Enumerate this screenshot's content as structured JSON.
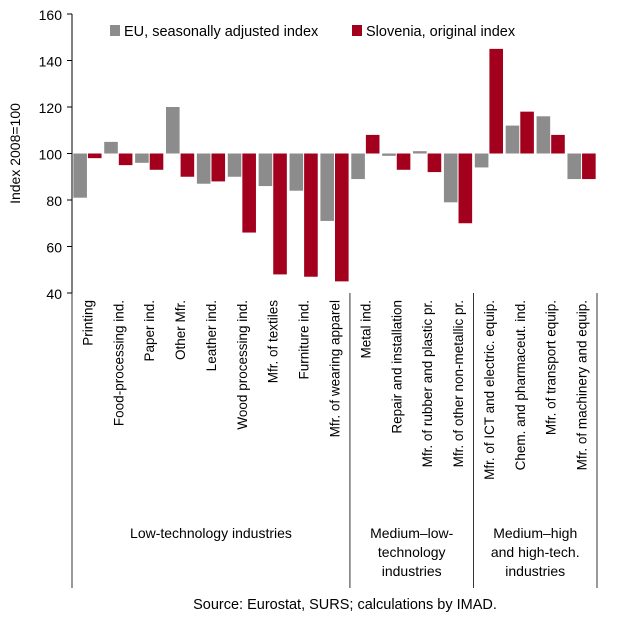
{
  "chart_data": {
    "type": "bar",
    "ylabel": "Index 2008=100",
    "ylim": [
      40,
      160
    ],
    "yticks": [
      40,
      60,
      80,
      100,
      120,
      140,
      160
    ],
    "baseline": 100,
    "grid": false,
    "legend_position": "top",
    "categories": [
      "Printing",
      "Food-processing ind.",
      "Paper ind.",
      "Other Mfr.",
      "Leather ind.",
      "Wood processing ind.",
      "Mfr. of textiles",
      "Furniture ind.",
      "Mfr. of wearing apparel",
      "Metal ind.",
      "Repair and installation",
      "Mfr. of rubber and plastic pr.",
      "Mfr. of other non-metallic pr.",
      "Mfr. of ICT and electric. equip.",
      "Chem. and pharmaceut. ind.",
      "Mfr. of transport equip.",
      "Mfr. of machinery and equip."
    ],
    "series": [
      {
        "name": "EU, seasonally adjusted index",
        "color": "#8c8c8c",
        "values": [
          81,
          105,
          96,
          120,
          87,
          90,
          86,
          84,
          71,
          89,
          99,
          101,
          79,
          94,
          112,
          116,
          89
        ]
      },
      {
        "name": "Slovenia, original index",
        "color": "#a3001e",
        "values": [
          98,
          95,
          93,
          90,
          88,
          66,
          48,
          47,
          45,
          108,
          93,
          92,
          70,
          145,
          118,
          108,
          89
        ]
      }
    ],
    "groups": [
      {
        "label_lines": [
          "Low-technology industries"
        ],
        "start": 0,
        "end": 8
      },
      {
        "label_lines": [
          "Medium–low-",
          "technology",
          "industries"
        ],
        "start": 9,
        "end": 12
      },
      {
        "label_lines": [
          "Medium–high",
          "and high-tech.",
          "industries"
        ],
        "start": 13,
        "end": 16
      }
    ],
    "source": "Source: Eurostat, SURS; calculations by IMAD."
  }
}
